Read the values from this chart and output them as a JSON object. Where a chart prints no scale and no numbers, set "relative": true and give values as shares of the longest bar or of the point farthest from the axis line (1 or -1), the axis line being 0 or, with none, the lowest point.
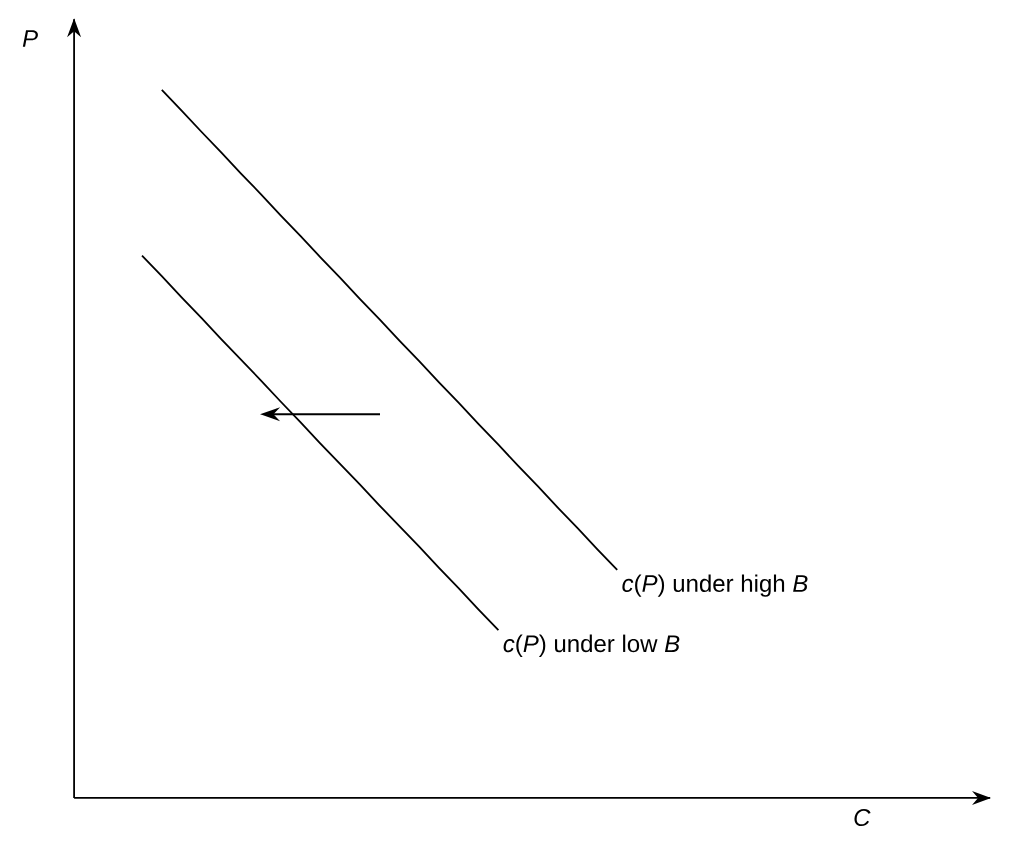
{
  "chart_data": {
    "type": "line",
    "relative": true,
    "annotations": [
      "C"
    ],
    "ylabel": "P",
    "marker": "none",
    "categories": [
      null,
      null,
      null,
      null,
      null,
      null,
      null,
      null,
      null,
      null,
      null,
      null,
      null,
      null,
      null,
      null,
      null,
      null,
      null,
      null,
      null,
      null,
      null,
      null,
      null
    ],
    "series": [
      {
        "name": "*c*(*P*) under high *B*",
        "color": "#000000",
        "values": [
          null,
          1.0,
          0.971,
          0.941,
          0.912,
          0.882,
          0.853,
          0.823,
          0.794,
          0.764,
          0.735,
          0.705,
          0.676,
          0.646,
          0.617,
          0.587,
          0.558,
          0.528,
          0.499,
          0.469,
          0.44,
          0.41,
          0.381,
          0.351,
          0.322
        ]
      },
      {
        "name": "*c*(*P*) under low *B*",
        "color": "#000000",
        "values": [
          0.766,
          0.737,
          0.707,
          0.678,
          0.648,
          0.619,
          0.59,
          0.56,
          0.531,
          0.501,
          0.472,
          0.443,
          0.413,
          0.384,
          0.355,
          0.325,
          0.296,
          0.266,
          0.237,
          null,
          null,
          null,
          null,
          null,
          null
        ]
      }
    ]
  }
}
